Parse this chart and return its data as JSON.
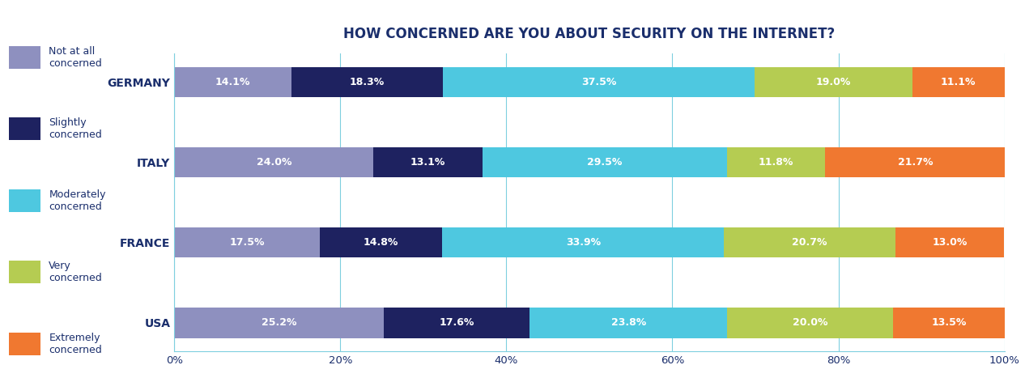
{
  "title": "HOW CONCERNED ARE YOU ABOUT SECURITY ON THE INTERNET?",
  "title_color": "#1a2e6c",
  "title_fontsize": 12,
  "categories": [
    "GERMANY",
    "ITALY",
    "FRANCE",
    "USA"
  ],
  "legend_labels": [
    "Not at all\nconcerned",
    "Slightly\nconcerned",
    "Moderately\nconcerned",
    "Very\nconcerned",
    "Extremely\nconcerned"
  ],
  "colors": [
    "#8e90bf",
    "#1e2260",
    "#4ec8e0",
    "#b5cc52",
    "#f07830"
  ],
  "data": {
    "GERMANY": [
      14.1,
      18.3,
      37.5,
      19.0,
      11.1
    ],
    "ITALY": [
      24.0,
      13.1,
      29.5,
      11.8,
      21.7
    ],
    "FRANCE": [
      17.5,
      14.8,
      33.9,
      20.7,
      13.0
    ],
    "USA": [
      25.2,
      17.6,
      23.8,
      20.0,
      13.5
    ]
  },
  "bar_height": 0.38,
  "text_color_white": "#ffffff",
  "axis_label_color": "#1a2e6c",
  "grid_color": "#7ecfdf",
  "background_color": "#ffffff",
  "legend_text_color": "#1a2e6c",
  "label_fontsize": 9,
  "ytick_fontsize": 10,
  "xtick_fontsize": 9.5
}
